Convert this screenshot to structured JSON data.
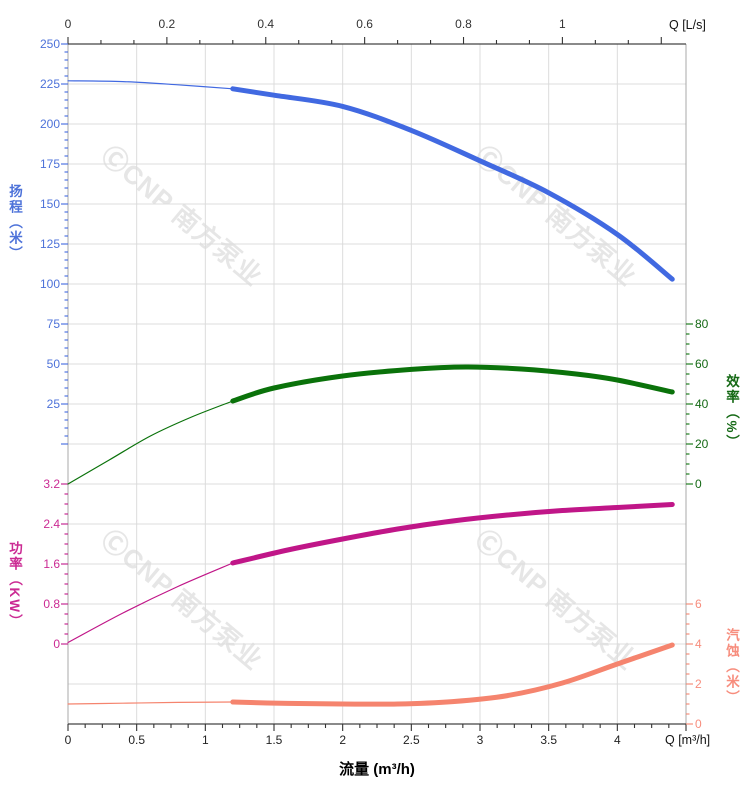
{
  "watermark_text": "ⒸCNP 南方泵业",
  "chart_data": {
    "type": "line",
    "grid": true,
    "x_axis_bottom": {
      "title": "流量 (m³/h)",
      "unit_label": "Q [m³/h]",
      "min": 0,
      "max": 4.5,
      "major_step": 0.5,
      "minor_step": 0.125,
      "tick_labels": [
        "0",
        "0.5",
        "1",
        "1.5",
        "2",
        "2.5",
        "3",
        "3.5",
        "4"
      ]
    },
    "x_axis_top": {
      "unit_label": "Q [L/s]",
      "min": 0,
      "max": 1.25,
      "major_step": 0.2,
      "minor_step": 0.0667,
      "ls_to_m3h": 3.6,
      "tick_labels": [
        "0",
        "0.2",
        "0.4",
        "0.6",
        "0.8",
        "1"
      ]
    },
    "y_axes": [
      {
        "id": "head",
        "title": "扬程（米）",
        "side": "left",
        "color": "#4169e1",
        "label_color": "#4d72d9",
        "min": 0,
        "max": 250,
        "major_step": 25,
        "minor_step": 5,
        "tick_labels": [
          "250",
          "225",
          "200",
          "175",
          "150",
          "125",
          "100",
          "75",
          "50",
          "25"
        ]
      },
      {
        "id": "power",
        "title": "功率（KW）",
        "side": "left",
        "color": "#c01688",
        "label_color": "#cb2a93",
        "min": 0,
        "max": 3.2,
        "major_step": 0.8,
        "minor_step": 0.2,
        "tick_labels": [
          "3.2",
          "2.4",
          "1.6",
          "0.8",
          "0"
        ]
      },
      {
        "id": "eff",
        "title": "效率（%）",
        "side": "right",
        "color": "#0a720a",
        "label_color": "#156915",
        "min": 0,
        "max": 80,
        "major_step": 20,
        "minor_step": 5,
        "tick_labels": [
          "80",
          "60",
          "40",
          "20",
          "0"
        ]
      },
      {
        "id": "npsh",
        "title": "汽蚀（米）",
        "side": "right",
        "color": "#f5846e",
        "label_color": "#f78d7d",
        "min": 0,
        "max": 6,
        "major_step": 2,
        "minor_step": 0.5,
        "tick_labels": [
          "6",
          "4",
          "2",
          "0"
        ]
      }
    ],
    "series": [
      {
        "name": "head-curve",
        "axis": "head",
        "color": "#4169e1",
        "thin": [
          [
            0,
            227
          ],
          [
            0.4,
            226.5
          ],
          [
            0.8,
            224.5
          ],
          [
            1.2,
            222
          ]
        ],
        "thick": [
          [
            1.2,
            222
          ],
          [
            1.5,
            218
          ],
          [
            2.0,
            211
          ],
          [
            2.5,
            196
          ],
          [
            3.0,
            177
          ],
          [
            3.5,
            157
          ],
          [
            4.0,
            131
          ],
          [
            4.4,
            103
          ]
        ]
      },
      {
        "name": "efficiency-curve",
        "axis": "eff",
        "color": "#0a720a",
        "thin": [
          [
            0,
            0
          ],
          [
            0.3,
            12
          ],
          [
            0.6,
            24
          ],
          [
            0.9,
            33.5
          ],
          [
            1.2,
            41.5
          ]
        ],
        "thick": [
          [
            1.2,
            41.5
          ],
          [
            1.5,
            48
          ],
          [
            2.0,
            54
          ],
          [
            2.5,
            57.3
          ],
          [
            2.9,
            58.5
          ],
          [
            3.3,
            57.5
          ],
          [
            3.7,
            55
          ],
          [
            4.0,
            52
          ],
          [
            4.4,
            46
          ]
        ]
      },
      {
        "name": "power-curve",
        "axis": "power",
        "color": "#c01688",
        "thin": [
          [
            0,
            0.03
          ],
          [
            0.4,
            0.62
          ],
          [
            0.8,
            1.15
          ],
          [
            1.2,
            1.62
          ]
        ],
        "thick": [
          [
            1.2,
            1.62
          ],
          [
            1.6,
            1.88
          ],
          [
            2.0,
            2.1
          ],
          [
            2.4,
            2.3
          ],
          [
            2.8,
            2.46
          ],
          [
            3.2,
            2.58
          ],
          [
            3.6,
            2.67
          ],
          [
            4.0,
            2.73
          ],
          [
            4.4,
            2.79
          ]
        ]
      },
      {
        "name": "npsh-curve",
        "axis": "npsh",
        "color": "#f5846e",
        "thin": [
          [
            0,
            1.0
          ],
          [
            0.4,
            1.04
          ],
          [
            0.8,
            1.08
          ],
          [
            1.2,
            1.1
          ]
        ],
        "thick": [
          [
            1.2,
            1.1
          ],
          [
            1.6,
            1.03
          ],
          [
            2.0,
            1.0
          ],
          [
            2.4,
            1.0
          ],
          [
            2.8,
            1.12
          ],
          [
            3.2,
            1.42
          ],
          [
            3.6,
            2.05
          ],
          [
            4.0,
            3.0
          ],
          [
            4.4,
            3.95
          ]
        ]
      }
    ]
  }
}
